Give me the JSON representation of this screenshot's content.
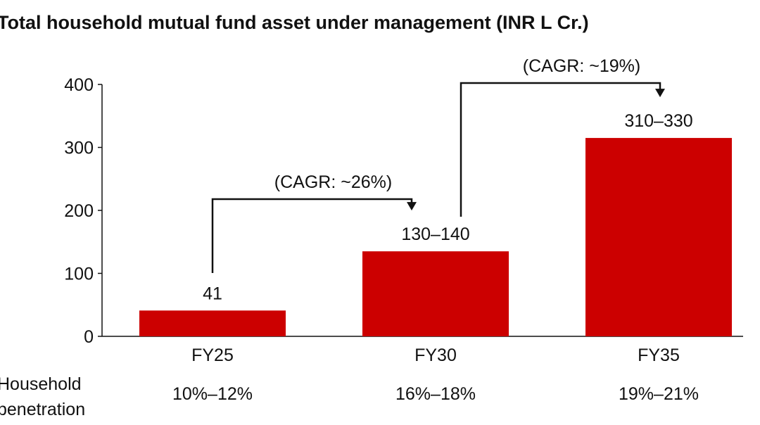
{
  "chart_data": {
    "type": "bar",
    "title": "Total household mutual fund asset under management (INR L Cr.)",
    "categories": [
      "FY25",
      "FY30",
      "FY35"
    ],
    "values": [
      41,
      135,
      315
    ],
    "value_labels": [
      "41",
      "130–140",
      "310–330"
    ],
    "ylim": [
      0,
      400
    ],
    "yticks": [
      0,
      100,
      200,
      300,
      400
    ],
    "bar_color": "#cc0000",
    "grid": false,
    "legend": "none",
    "annotations": [
      {
        "text": "(CAGR: ~26%)",
        "from": "FY25",
        "to": "FY30"
      },
      {
        "text": "(CAGR: ~19%)",
        "from": "FY30",
        "to": "FY35"
      }
    ],
    "row_label": "Household penetration",
    "row_values": [
      "10%–12%",
      "16%–18%",
      "19%–21%"
    ]
  }
}
